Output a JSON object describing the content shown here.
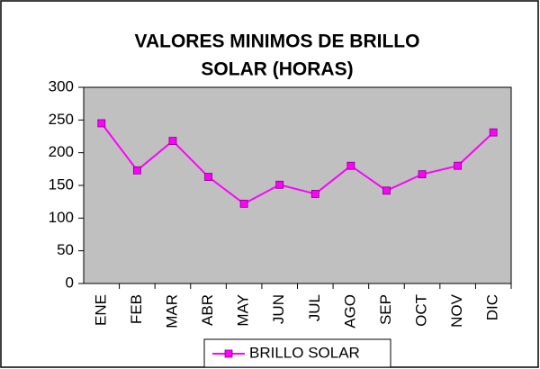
{
  "chart_data": {
    "type": "line",
    "title": [
      "VALORES MINIMOS DE BRILLO",
      "SOLAR (HORAS)"
    ],
    "categories": [
      "ENE",
      "FEB",
      "MAR",
      "ABR",
      "MAY",
      "JUN",
      "JUL",
      "AGO",
      "SEP",
      "OCT",
      "NOV",
      "DIC"
    ],
    "series": [
      {
        "name": "BRILLO SOLAR",
        "color": "#ff00ff",
        "values": [
          245,
          173,
          218,
          163,
          122,
          151,
          137,
          180,
          142,
          167,
          180,
          231
        ]
      }
    ],
    "ylim": [
      0,
      300
    ],
    "yticks": [
      0,
      50,
      100,
      150,
      200,
      250,
      300
    ],
    "grid": false,
    "legend": "bottom"
  }
}
